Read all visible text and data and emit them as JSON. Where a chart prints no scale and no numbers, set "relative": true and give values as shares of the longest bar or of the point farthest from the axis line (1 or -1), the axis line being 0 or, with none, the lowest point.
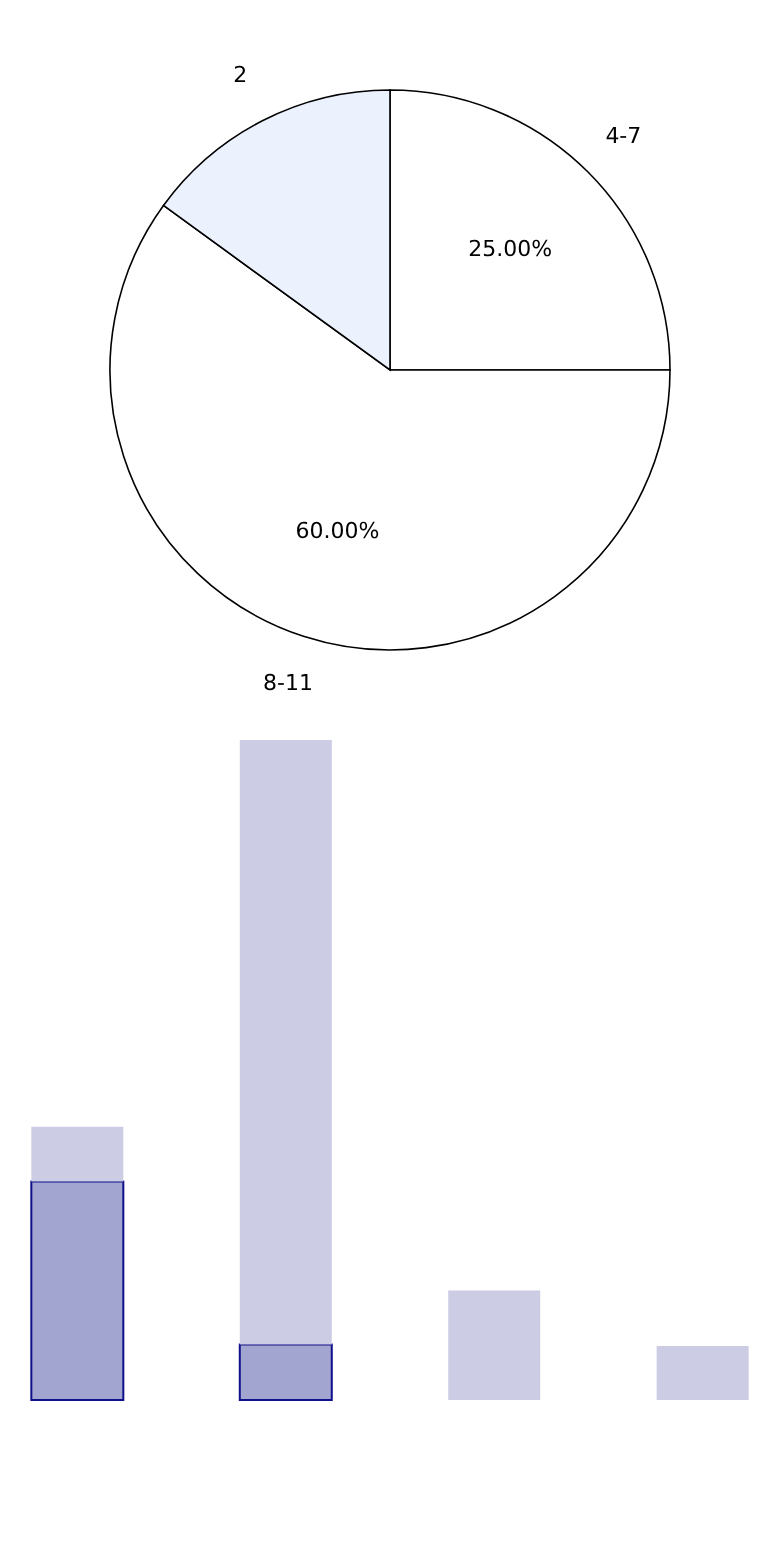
{
  "chart_data": [
    {
      "type": "pie",
      "categories": [
        "4-7",
        "8-11",
        "2"
      ],
      "values": [
        25,
        60,
        15
      ],
      "colors": [
        "#ffffff",
        "#ffffff",
        "#ebf1fd"
      ],
      "value_labels": [
        "25.00%",
        "60.00%",
        null
      ],
      "legend": false
    },
    {
      "type": "bar",
      "relative": true,
      "stacked": true,
      "categories": [
        null,
        null,
        null,
        null
      ],
      "series": [
        {
          "color": "#a3a5d1",
          "values": [
            0.331,
            0.084,
            0,
            0
          ]
        },
        {
          "color": "#cccce4",
          "values": [
            0.083,
            0.916,
            0.166,
            0.082
          ]
        }
      ]
    }
  ]
}
